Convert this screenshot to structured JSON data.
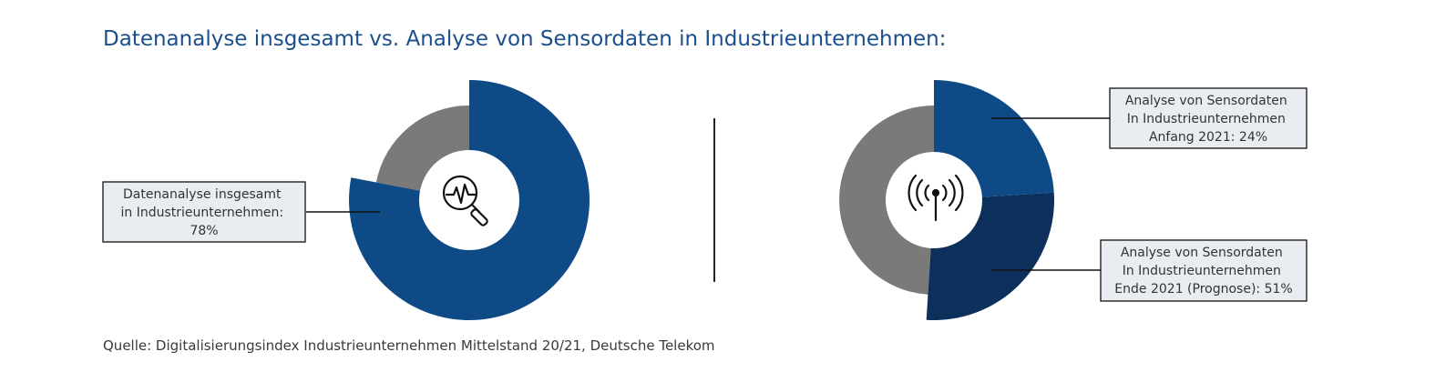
{
  "title": "Datenanalyse insgesamt vs. Analyse von Sensordaten in Industrieunternehmen:",
  "source": "Quelle: Digitalisierungsindex Industrieunternehmen Mittelstand 20/21, Deutsche Telekom",
  "colors": {
    "blue": "#0d4a86",
    "dark_blue": "#0d2f5c",
    "gray": "#7a7a78",
    "label_bg": "#e9ecf1"
  },
  "icons": {
    "left_center": "magnifier-pulse-icon",
    "right_center": "antenna-signal-icon"
  },
  "chart_data": [
    {
      "type": "pie",
      "values": [
        78
      ],
      "unit": "%",
      "labels": [
        [
          "Datenanalyse insgesamt",
          "in Industrieunternehmen:",
          "78%"
        ]
      ]
    },
    {
      "type": "pie",
      "values": [
        24,
        51
      ],
      "unit": "%",
      "labels": [
        [
          "Analyse von Sensordaten",
          "In Industrieunternehmen",
          "Anfang 2021: 24%"
        ],
        [
          "Analyse von Sensordaten",
          "In Industrieunternehmen",
          "Ende 2021 (Prognose): 51%"
        ]
      ]
    }
  ]
}
